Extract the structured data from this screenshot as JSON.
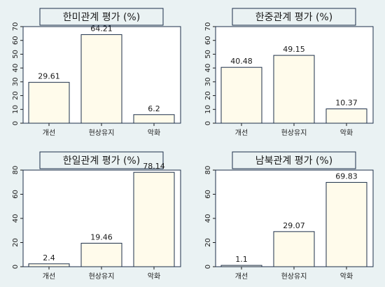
{
  "chart_data": [
    {
      "type": "bar",
      "title": "한미관계 평가 (%)",
      "categories": [
        "개선",
        "현상유지",
        "악화"
      ],
      "values": [
        29.61,
        64.21,
        6.2
      ],
      "value_labels": [
        "29.61",
        "64.21",
        "6.2"
      ],
      "yticks": [
        0,
        10,
        20,
        30,
        40,
        50,
        60,
        70
      ],
      "ylim": [
        0,
        70
      ],
      "xlabel": "",
      "ylabel": "",
      "bar_color": "#fffbeb",
      "bar_edge_color": "#1c2f4a",
      "grid": false,
      "legend": false
    },
    {
      "type": "bar",
      "title": "한중관계 평가 (%)",
      "categories": [
        "개선",
        "현상유지",
        "악화"
      ],
      "values": [
        40.48,
        49.15,
        10.37
      ],
      "value_labels": [
        "40.48",
        "49.15",
        "10.37"
      ],
      "yticks": [
        0,
        10,
        20,
        30,
        40,
        50,
        60,
        70
      ],
      "ylim": [
        0,
        70
      ],
      "xlabel": "",
      "ylabel": "",
      "bar_color": "#fffbeb",
      "bar_edge_color": "#1c2f4a",
      "grid": false,
      "legend": false
    },
    {
      "type": "bar",
      "title": "한일관계 평가 (%)",
      "categories": [
        "개선",
        "현상유지",
        "악화"
      ],
      "values": [
        2.4,
        19.46,
        78.14
      ],
      "value_labels": [
        "2.4",
        "19.46",
        "78.14"
      ],
      "yticks": [
        0,
        20,
        40,
        60,
        80
      ],
      "ylim": [
        0,
        80
      ],
      "xlabel": "",
      "ylabel": "",
      "bar_color": "#fffbeb",
      "bar_edge_color": "#1c2f4a",
      "grid": false,
      "legend": false
    },
    {
      "type": "bar",
      "title": "남북관계 평가 (%)",
      "categories": [
        "개선",
        "현상유지",
        "악화"
      ],
      "values": [
        1.1,
        29.07,
        69.83
      ],
      "value_labels": [
        "1.1",
        "29.07",
        "69.83"
      ],
      "yticks": [
        0,
        20,
        40,
        60,
        80
      ],
      "ylim": [
        0,
        80
      ],
      "xlabel": "",
      "ylabel": "",
      "bar_color": "#fffbeb",
      "bar_edge_color": "#1c2f4a",
      "grid": false,
      "legend": false
    }
  ]
}
